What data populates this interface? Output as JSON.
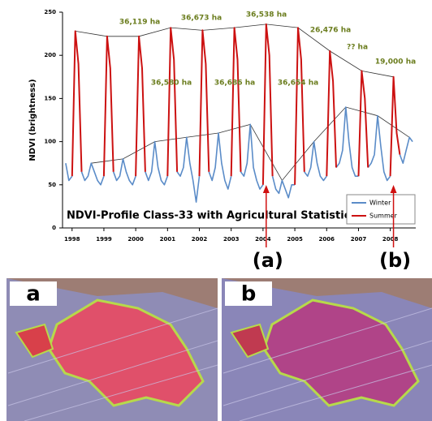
{
  "chart_data": {
    "type": "line",
    "title": "NDVI-Profile Class-33 with Agricultural Statistics",
    "y_label": "NDVI (brightness)",
    "x": [
      1997.8,
      1997.9,
      1998,
      1998.1,
      1998.2,
      1998.3,
      1998.4,
      1998.5,
      1998.6,
      1998.7,
      1998.8,
      1998.9,
      1999,
      1999.1,
      1999.2,
      1999.3,
      1999.4,
      1999.5,
      1999.6,
      1999.7,
      1999.8,
      1999.9,
      2000,
      2000.1,
      2000.2,
      2000.3,
      2000.4,
      2000.5,
      2000.6,
      2000.7,
      2000.8,
      2000.9,
      2001,
      2001.1,
      2001.2,
      2001.3,
      2001.4,
      2001.5,
      2001.6,
      2001.7,
      2001.8,
      2001.9,
      2002,
      2002.1,
      2002.2,
      2002.3,
      2002.4,
      2002.5,
      2002.6,
      2002.7,
      2002.8,
      2002.9,
      2003,
      2003.1,
      2003.2,
      2003.3,
      2003.4,
      2003.5,
      2003.6,
      2003.7,
      2003.8,
      2003.9,
      2004,
      2004.1,
      2004.2,
      2004.3,
      2004.4,
      2004.5,
      2004.6,
      2004.7,
      2004.8,
      2004.9,
      2005,
      2005.1,
      2005.2,
      2005.3,
      2005.4,
      2005.5,
      2005.6,
      2005.7,
      2005.8,
      2005.9,
      2006,
      2006.1,
      2006.2,
      2006.3,
      2006.4,
      2006.5,
      2006.6,
      2006.7,
      2006.8,
      2006.9,
      2007,
      2007.1,
      2007.2,
      2007.3,
      2007.4,
      2007.5,
      2007.6,
      2007.7,
      2007.8,
      2007.9,
      2008,
      2008.1,
      2008.2,
      2008.3,
      2008.4,
      2008.5,
      2008.6,
      2008.7
    ],
    "series": [
      {
        "name": "Winter",
        "color": "#5b8cc8",
        "values": [
          75,
          55,
          60,
          null,
          null,
          65,
          55,
          60,
          75,
          65,
          55,
          50,
          60,
          null,
          null,
          65,
          55,
          60,
          80,
          65,
          55,
          50,
          60,
          null,
          null,
          65,
          55,
          65,
          100,
          70,
          55,
          50,
          60,
          null,
          null,
          65,
          60,
          70,
          105,
          75,
          55,
          30,
          60,
          null,
          null,
          65,
          55,
          70,
          110,
          75,
          55,
          45,
          60,
          null,
          null,
          65,
          60,
          75,
          120,
          70,
          55,
          45,
          50,
          null,
          null,
          60,
          45,
          40,
          55,
          45,
          35,
          50,
          50,
          null,
          null,
          65,
          60,
          70,
          100,
          75,
          60,
          55,
          60,
          null,
          null,
          70,
          75,
          90,
          140,
          100,
          70,
          60,
          60,
          null,
          null,
          70,
          75,
          85,
          130,
          95,
          65,
          55,
          60,
          null,
          null,
          85,
          75,
          90,
          105,
          100
        ]
      },
      {
        "name": "Summer",
        "color": "#cc1111",
        "values": [
          null,
          null,
          60,
          228,
          190,
          65,
          null,
          null,
          null,
          null,
          null,
          null,
          60,
          222,
          185,
          65,
          null,
          null,
          null,
          null,
          null,
          null,
          60,
          222,
          185,
          65,
          null,
          null,
          null,
          null,
          null,
          null,
          60,
          232,
          195,
          65,
          null,
          null,
          null,
          null,
          null,
          null,
          60,
          229,
          190,
          65,
          null,
          null,
          null,
          null,
          null,
          null,
          60,
          232,
          195,
          65,
          null,
          null,
          null,
          null,
          null,
          null,
          50,
          236,
          200,
          60,
          null,
          null,
          null,
          null,
          null,
          null,
          50,
          232,
          195,
          65,
          null,
          null,
          null,
          null,
          null,
          null,
          60,
          205,
          170,
          70,
          null,
          null,
          null,
          null,
          null,
          null,
          60,
          182,
          150,
          70,
          null,
          null,
          null,
          null,
          null,
          null,
          60,
          175,
          110,
          85,
          null,
          null,
          null,
          null
        ]
      }
    ],
    "xlim": [
      1997.7,
      2008.8
    ],
    "xticks": [
      1998,
      1999,
      2000,
      2001,
      2002,
      2003,
      2004,
      2005,
      2006,
      2007,
      2008
    ],
    "ylim": [
      0,
      250
    ],
    "yticks": [
      0,
      50,
      100,
      150,
      200,
      250
    ],
    "legend": "lower right",
    "annotations": [
      "36,119 ha",
      "36,673 ha",
      "36,538 ha",
      "26,476 ha",
      "?? ha",
      "19,000 ha",
      "36,580 ha",
      "36,686 ha",
      "36,654 ha"
    ],
    "annotation_color": "#6b7d1e",
    "markers": [
      "(a)",
      "(b)"
    ]
  },
  "images": [
    {
      "label": "a"
    },
    {
      "label": "b"
    }
  ]
}
